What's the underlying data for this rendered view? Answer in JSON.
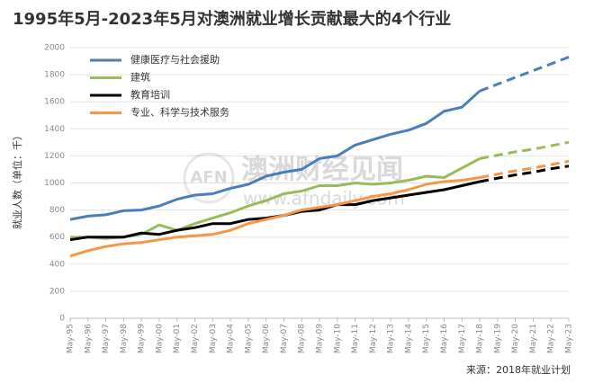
{
  "chart_data": {
    "type": "line",
    "title": "1995年5月-2023年5月对澳洲就业增长贡献最大的4个行业",
    "y_label": "就业人数（单位：千）",
    "source": "来源：2018年就业计划",
    "watermark": [
      "AFN",
      "澳洲财经见闻",
      "www.afndaily.com"
    ],
    "categories": [
      "May-95",
      "May-96",
      "May-97",
      "May-98",
      "May-99",
      "May-00",
      "May-01",
      "May-02",
      "May-03",
      "May-04",
      "May-05",
      "May-06",
      "May-07",
      "May-08",
      "May-09",
      "May-10",
      "May-11",
      "May-12",
      "May-13",
      "May-14",
      "May-15",
      "May-16",
      "May-17",
      "May-18",
      "May-19",
      "May-20",
      "May-21",
      "May-22",
      "May-23"
    ],
    "ylim": [
      0,
      2000
    ],
    "yticks": [
      0,
      200,
      400,
      600,
      800,
      1000,
      1200,
      1400,
      1600,
      1800,
      2000
    ],
    "grid": true,
    "legend": "top-left",
    "series": [
      {
        "name": "健康医疗与社会援助",
        "color": "#4a7ebb",
        "values": [
          730,
          755,
          765,
          795,
          800,
          830,
          880,
          910,
          920,
          960,
          990,
          1050,
          1080,
          1100,
          1180,
          1200,
          1280,
          1320,
          1360,
          1390,
          1440,
          1530,
          1560,
          1680,
          null,
          null,
          null,
          null,
          null
        ],
        "forecast": [
          null,
          null,
          null,
          null,
          null,
          null,
          null,
          null,
          null,
          null,
          null,
          null,
          null,
          null,
          null,
          null,
          null,
          null,
          null,
          null,
          null,
          null,
          null,
          1680,
          1730,
          1780,
          1830,
          1880,
          1930
        ]
      },
      {
        "name": "建筑",
        "color": "#9bbb59",
        "values": [
          600,
          600,
          590,
          600,
          620,
          690,
          650,
          700,
          740,
          780,
          830,
          870,
          920,
          940,
          980,
          980,
          1000,
          990,
          1000,
          1020,
          1050,
          1040,
          1110,
          1180,
          null,
          null,
          null,
          null,
          null
        ],
        "forecast": [
          null,
          null,
          null,
          null,
          null,
          null,
          null,
          null,
          null,
          null,
          null,
          null,
          null,
          null,
          null,
          null,
          null,
          null,
          null,
          null,
          null,
          null,
          null,
          1180,
          1205,
          1230,
          1250,
          1275,
          1300
        ]
      },
      {
        "name": "教育培训",
        "color": "#000000",
        "values": [
          580,
          600,
          600,
          600,
          630,
          620,
          650,
          670,
          700,
          700,
          730,
          740,
          760,
          790,
          800,
          840,
          840,
          870,
          890,
          910,
          930,
          950,
          980,
          1010,
          null,
          null,
          null,
          null,
          null
        ],
        "forecast": [
          null,
          null,
          null,
          null,
          null,
          null,
          null,
          null,
          null,
          null,
          null,
          null,
          null,
          null,
          null,
          null,
          null,
          null,
          null,
          null,
          null,
          null,
          null,
          1010,
          1035,
          1060,
          1080,
          1105,
          1125
        ]
      },
      {
        "name": "专业、科学与技术服务",
        "color": "#f79646",
        "values": [
          460,
          500,
          530,
          550,
          560,
          580,
          600,
          610,
          620,
          650,
          700,
          730,
          760,
          800,
          820,
          840,
          870,
          900,
          920,
          950,
          990,
          1010,
          1020,
          1040,
          null,
          null,
          null,
          null,
          null
        ],
        "forecast": [
          null,
          null,
          null,
          null,
          null,
          null,
          null,
          null,
          null,
          null,
          null,
          null,
          null,
          null,
          null,
          null,
          null,
          null,
          null,
          null,
          null,
          null,
          null,
          1040,
          1065,
          1090,
          1110,
          1135,
          1160
        ]
      }
    ]
  }
}
